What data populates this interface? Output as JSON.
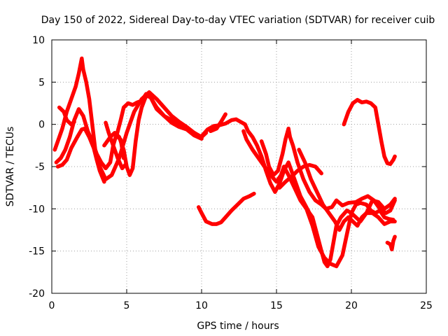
{
  "chart_data": {
    "type": "line",
    "title": "Day 150 of 2022, Sidereal Day-to-day VTEC variation (SDTVAR) for receiver cuib",
    "xlabel": "GPS time / hours",
    "ylabel": "SDTVAR / TECUs",
    "xlim": [
      0,
      25
    ],
    "ylim": [
      -20,
      10
    ],
    "xticks": [
      0,
      5,
      10,
      15,
      20,
      25
    ],
    "yticks": [
      -20,
      -15,
      -10,
      -5,
      0,
      5,
      10
    ],
    "xtick_labels": [
      "0",
      "5",
      "10",
      "15",
      "20",
      "25"
    ],
    "ytick_labels": [
      "-20",
      "-15",
      "-10",
      "-5",
      "0",
      "5",
      "10"
    ],
    "grid": true,
    "color": "#ff0000",
    "series": [
      {
        "name": "track-1",
        "points": [
          [
            0.2,
            -3
          ],
          [
            0.4,
            -2
          ],
          [
            0.7,
            -0.5
          ],
          [
            1.0,
            1.5
          ],
          [
            1.3,
            3
          ],
          [
            1.6,
            4.5
          ],
          [
            1.8,
            6
          ],
          [
            2.0,
            7.8
          ],
          [
            2.1,
            6.5
          ],
          [
            2.3,
            5
          ],
          [
            2.5,
            3
          ],
          [
            2.7,
            0
          ],
          [
            2.9,
            -3
          ],
          [
            3.2,
            -5
          ],
          [
            3.6,
            -6.5
          ],
          [
            4.0,
            -6
          ],
          [
            4.5,
            -4
          ],
          [
            5.0,
            -1
          ],
          [
            5.5,
            1.5
          ],
          [
            6.0,
            3
          ],
          [
            6.5,
            3.8
          ],
          [
            7.0,
            3
          ],
          [
            7.5,
            2
          ],
          [
            8.0,
            1
          ],
          [
            8.5,
            0.3
          ],
          [
            9.0,
            -0.3
          ],
          [
            9.5,
            -1
          ],
          [
            10.0,
            -1.5
          ],
          [
            10.3,
            -1
          ]
        ]
      },
      {
        "name": "track-2",
        "points": [
          [
            0.3,
            -4.5
          ],
          [
            0.6,
            -4
          ],
          [
            0.9,
            -3
          ],
          [
            1.2,
            -1.5
          ],
          [
            1.5,
            0.5
          ],
          [
            1.8,
            1.8
          ],
          [
            2.1,
            1
          ],
          [
            2.4,
            -0.8
          ],
          [
            2.7,
            -2
          ],
          [
            3.0,
            -3.5
          ],
          [
            3.3,
            -4.5
          ],
          [
            3.6,
            -5.2
          ],
          [
            3.9,
            -4.5
          ],
          [
            4.1,
            -2.5
          ],
          [
            4.3,
            -1.3
          ],
          [
            4.6,
            -1.8
          ],
          [
            4.8,
            -4
          ]
        ]
      },
      {
        "name": "track-3",
        "points": [
          [
            0.4,
            -5
          ],
          [
            0.7,
            -4.8
          ],
          [
            1.0,
            -4.2
          ],
          [
            1.3,
            -2.8
          ],
          [
            1.7,
            -1.5
          ],
          [
            2.0,
            -0.6
          ],
          [
            2.2,
            -0.5
          ],
          [
            2.5,
            -1.5
          ],
          [
            2.8,
            -2.8
          ],
          [
            3.0,
            -4.2
          ],
          [
            3.2,
            -5.5
          ],
          [
            3.5,
            -6.8
          ]
        ]
      },
      {
        "name": "track-4",
        "points": [
          [
            0.5,
            2
          ],
          [
            0.8,
            1.5
          ],
          [
            1.0,
            0.5
          ],
          [
            1.3,
            0
          ],
          [
            1.5,
            0.3
          ]
        ]
      },
      {
        "name": "track-5",
        "points": [
          [
            3.5,
            -2.5
          ],
          [
            3.9,
            -1.5
          ],
          [
            4.2,
            -1
          ],
          [
            4.5,
            -1.5
          ],
          [
            4.8,
            -3
          ],
          [
            5.0,
            -5
          ],
          [
            5.2,
            -6
          ],
          [
            5.4,
            -5.2
          ],
          [
            5.6,
            -2
          ],
          [
            5.8,
            0.5
          ],
          [
            6.0,
            2
          ],
          [
            6.3,
            3.4
          ],
          [
            6.6,
            3.2
          ],
          [
            7.0,
            1.8
          ],
          [
            7.5,
            1
          ],
          [
            8.0,
            0.2
          ],
          [
            8.5,
            -0.3
          ],
          [
            9.0,
            -0.6
          ],
          [
            9.5,
            -1.3
          ],
          [
            10.0,
            -1.7
          ]
        ]
      },
      {
        "name": "track-6",
        "points": [
          [
            3.6,
            0.2
          ],
          [
            3.8,
            -1
          ],
          [
            4.1,
            -2.5
          ],
          [
            4.4,
            -4
          ],
          [
            4.7,
            -5.2
          ],
          [
            4.9,
            -4.8
          ]
        ]
      },
      {
        "name": "track-7",
        "points": [
          [
            4.3,
            -1.5
          ],
          [
            4.6,
            0.5
          ],
          [
            4.8,
            2
          ],
          [
            5.1,
            2.5
          ],
          [
            5.4,
            2.3
          ],
          [
            5.7,
            2.6
          ],
          [
            6.0,
            2.8
          ],
          [
            6.3,
            3.6
          ],
          [
            6.6,
            3.2
          ],
          [
            7.0,
            2
          ],
          [
            7.5,
            1
          ],
          [
            8.0,
            0.5
          ],
          [
            8.5,
            0
          ],
          [
            9.0,
            -0.5
          ],
          [
            9.5,
            -1
          ],
          [
            10.0,
            -1.6
          ]
        ]
      },
      {
        "name": "track-8",
        "points": [
          [
            9.8,
            -9.8
          ],
          [
            10.0,
            -10.5
          ],
          [
            10.3,
            -11.5
          ],
          [
            10.7,
            -11.8
          ],
          [
            11.0,
            -11.8
          ],
          [
            11.3,
            -11.6
          ],
          [
            11.6,
            -11
          ],
          [
            12.0,
            -10.2
          ],
          [
            12.4,
            -9.5
          ],
          [
            12.8,
            -8.8
          ],
          [
            13.2,
            -8.5
          ],
          [
            13.5,
            -8.2
          ]
        ]
      },
      {
        "name": "track-9",
        "points": [
          [
            10.0,
            -1.4
          ],
          [
            10.4,
            -0.6
          ],
          [
            10.8,
            -0.2
          ],
          [
            11.2,
            -0.1
          ],
          [
            11.6,
            0.1
          ],
          [
            12.0,
            0.5
          ],
          [
            12.3,
            0.6
          ],
          [
            12.6,
            0.3
          ],
          [
            12.9,
            0
          ],
          [
            13.1,
            -0.8
          ],
          [
            13.4,
            -1.5
          ],
          [
            13.7,
            -2.5
          ],
          [
            14.0,
            -3.8
          ],
          [
            14.3,
            -5.5
          ],
          [
            14.6,
            -7
          ],
          [
            14.9,
            -8
          ],
          [
            15.2,
            -7
          ],
          [
            15.5,
            -5.5
          ],
          [
            15.8,
            -4.5
          ],
          [
            16.0,
            -5.5
          ],
          [
            16.3,
            -7
          ],
          [
            16.6,
            -8.5
          ],
          [
            16.9,
            -9.5
          ],
          [
            17.2,
            -10.5
          ],
          [
            17.4,
            -11
          ],
          [
            17.7,
            -13
          ],
          [
            18.0,
            -15
          ],
          [
            18.2,
            -16.3
          ],
          [
            18.4,
            -16.8
          ],
          [
            18.6,
            -16
          ],
          [
            18.8,
            -14
          ],
          [
            19.0,
            -12
          ],
          [
            19.3,
            -11
          ],
          [
            19.7,
            -10.2
          ],
          [
            20.0,
            -10.5
          ],
          [
            20.3,
            -9.5
          ],
          [
            20.6,
            -9.3
          ],
          [
            21.0,
            -9.5
          ],
          [
            21.3,
            -10.2
          ],
          [
            21.6,
            -10.5
          ],
          [
            21.9,
            -10.2
          ],
          [
            22.2,
            -11
          ],
          [
            22.5,
            -11.2
          ],
          [
            22.8,
            -11.3
          ]
        ]
      },
      {
        "name": "track-10",
        "points": [
          [
            10.6,
            -0.8
          ],
          [
            11.0,
            -0.5
          ],
          [
            11.3,
            0.3
          ],
          [
            11.6,
            1.2
          ]
        ]
      },
      {
        "name": "track-11",
        "points": [
          [
            12.8,
            -0.8
          ],
          [
            13.0,
            -1.8
          ],
          [
            13.4,
            -3
          ],
          [
            13.8,
            -4
          ],
          [
            14.2,
            -5
          ],
          [
            14.6,
            -6
          ],
          [
            15.0,
            -6.8
          ],
          [
            15.3,
            -6
          ],
          [
            15.5,
            -5
          ],
          [
            15.8,
            -6
          ],
          [
            16.2,
            -7.5
          ],
          [
            16.6,
            -9
          ],
          [
            17.0,
            -10
          ],
          [
            17.4,
            -12
          ],
          [
            17.8,
            -14.5
          ],
          [
            18.2,
            -15.8
          ],
          [
            18.6,
            -16.5
          ],
          [
            19.0,
            -16.8
          ],
          [
            19.4,
            -15.5
          ],
          [
            19.7,
            -13
          ],
          [
            20.0,
            -10.5
          ],
          [
            20.3,
            -11
          ],
          [
            20.6,
            -11.5
          ],
          [
            21.0,
            -10.5
          ],
          [
            21.4,
            -9
          ],
          [
            21.8,
            -9.2
          ],
          [
            22.2,
            -10
          ],
          [
            22.6,
            -9.5
          ],
          [
            22.9,
            -8.8
          ]
        ]
      },
      {
        "name": "track-12",
        "points": [
          [
            14.0,
            -2
          ],
          [
            14.3,
            -3.5
          ],
          [
            14.5,
            -5
          ],
          [
            14.8,
            -6
          ],
          [
            15.1,
            -5.5
          ],
          [
            15.4,
            -3.5
          ],
          [
            15.6,
            -1.8
          ],
          [
            15.8,
            -0.5
          ],
          [
            15.9,
            -1.5
          ],
          [
            16.1,
            -2.5
          ],
          [
            16.4,
            -4.5
          ],
          [
            16.8,
            -6.5
          ],
          [
            17.2,
            -8
          ],
          [
            17.6,
            -9
          ],
          [
            18.0,
            -9.5
          ],
          [
            18.3,
            -10
          ],
          [
            18.7,
            -9.8
          ],
          [
            19.0,
            -9
          ],
          [
            19.4,
            -9.6
          ],
          [
            19.8,
            -9.3
          ],
          [
            20.3,
            -9.2
          ],
          [
            20.7,
            -8.8
          ],
          [
            21.1,
            -8.5
          ],
          [
            21.5,
            -9
          ],
          [
            21.9,
            -10
          ],
          [
            22.3,
            -10.5
          ],
          [
            22.6,
            -10.2
          ],
          [
            22.9,
            -9
          ]
        ]
      },
      {
        "name": "track-13",
        "points": [
          [
            15.2,
            -7.5
          ],
          [
            15.6,
            -6.8
          ],
          [
            16.0,
            -6.2
          ],
          [
            16.4,
            -5.5
          ],
          [
            16.8,
            -5
          ],
          [
            17.2,
            -4.8
          ],
          [
            17.6,
            -5
          ],
          [
            18.0,
            -5.8
          ]
        ]
      },
      {
        "name": "track-14",
        "points": [
          [
            16.5,
            -3
          ],
          [
            16.9,
            -4.5
          ],
          [
            17.3,
            -6.5
          ],
          [
            17.7,
            -8
          ],
          [
            18.1,
            -9.5
          ],
          [
            18.5,
            -10.5
          ],
          [
            18.9,
            -11.5
          ],
          [
            19.2,
            -12.5
          ],
          [
            19.5,
            -11.5
          ],
          [
            19.8,
            -11
          ],
          [
            20.1,
            -11.5
          ],
          [
            20.4,
            -12
          ],
          [
            20.7,
            -11
          ],
          [
            21.0,
            -10.5
          ],
          [
            21.4,
            -10.5
          ],
          [
            21.8,
            -11
          ],
          [
            22.2,
            -11.8
          ],
          [
            22.6,
            -11.5
          ],
          [
            22.9,
            -11.5
          ]
        ]
      },
      {
        "name": "track-15",
        "points": [
          [
            19.5,
            0
          ],
          [
            19.8,
            1.5
          ],
          [
            20.1,
            2.5
          ],
          [
            20.4,
            2.9
          ],
          [
            20.7,
            2.6
          ],
          [
            21.0,
            2.7
          ],
          [
            21.3,
            2.5
          ],
          [
            21.6,
            2
          ],
          [
            21.8,
            0
          ],
          [
            22.0,
            -2
          ],
          [
            22.2,
            -3.8
          ],
          [
            22.4,
            -4.6
          ],
          [
            22.6,
            -4.7
          ],
          [
            22.8,
            -4.2
          ],
          [
            22.9,
            -3.8
          ]
        ]
      },
      {
        "name": "track-16",
        "points": [
          [
            22.4,
            -14
          ],
          [
            22.6,
            -14.2
          ],
          [
            22.7,
            -14.8
          ],
          [
            22.8,
            -13.8
          ],
          [
            22.9,
            -13.3
          ]
        ]
      }
    ]
  }
}
